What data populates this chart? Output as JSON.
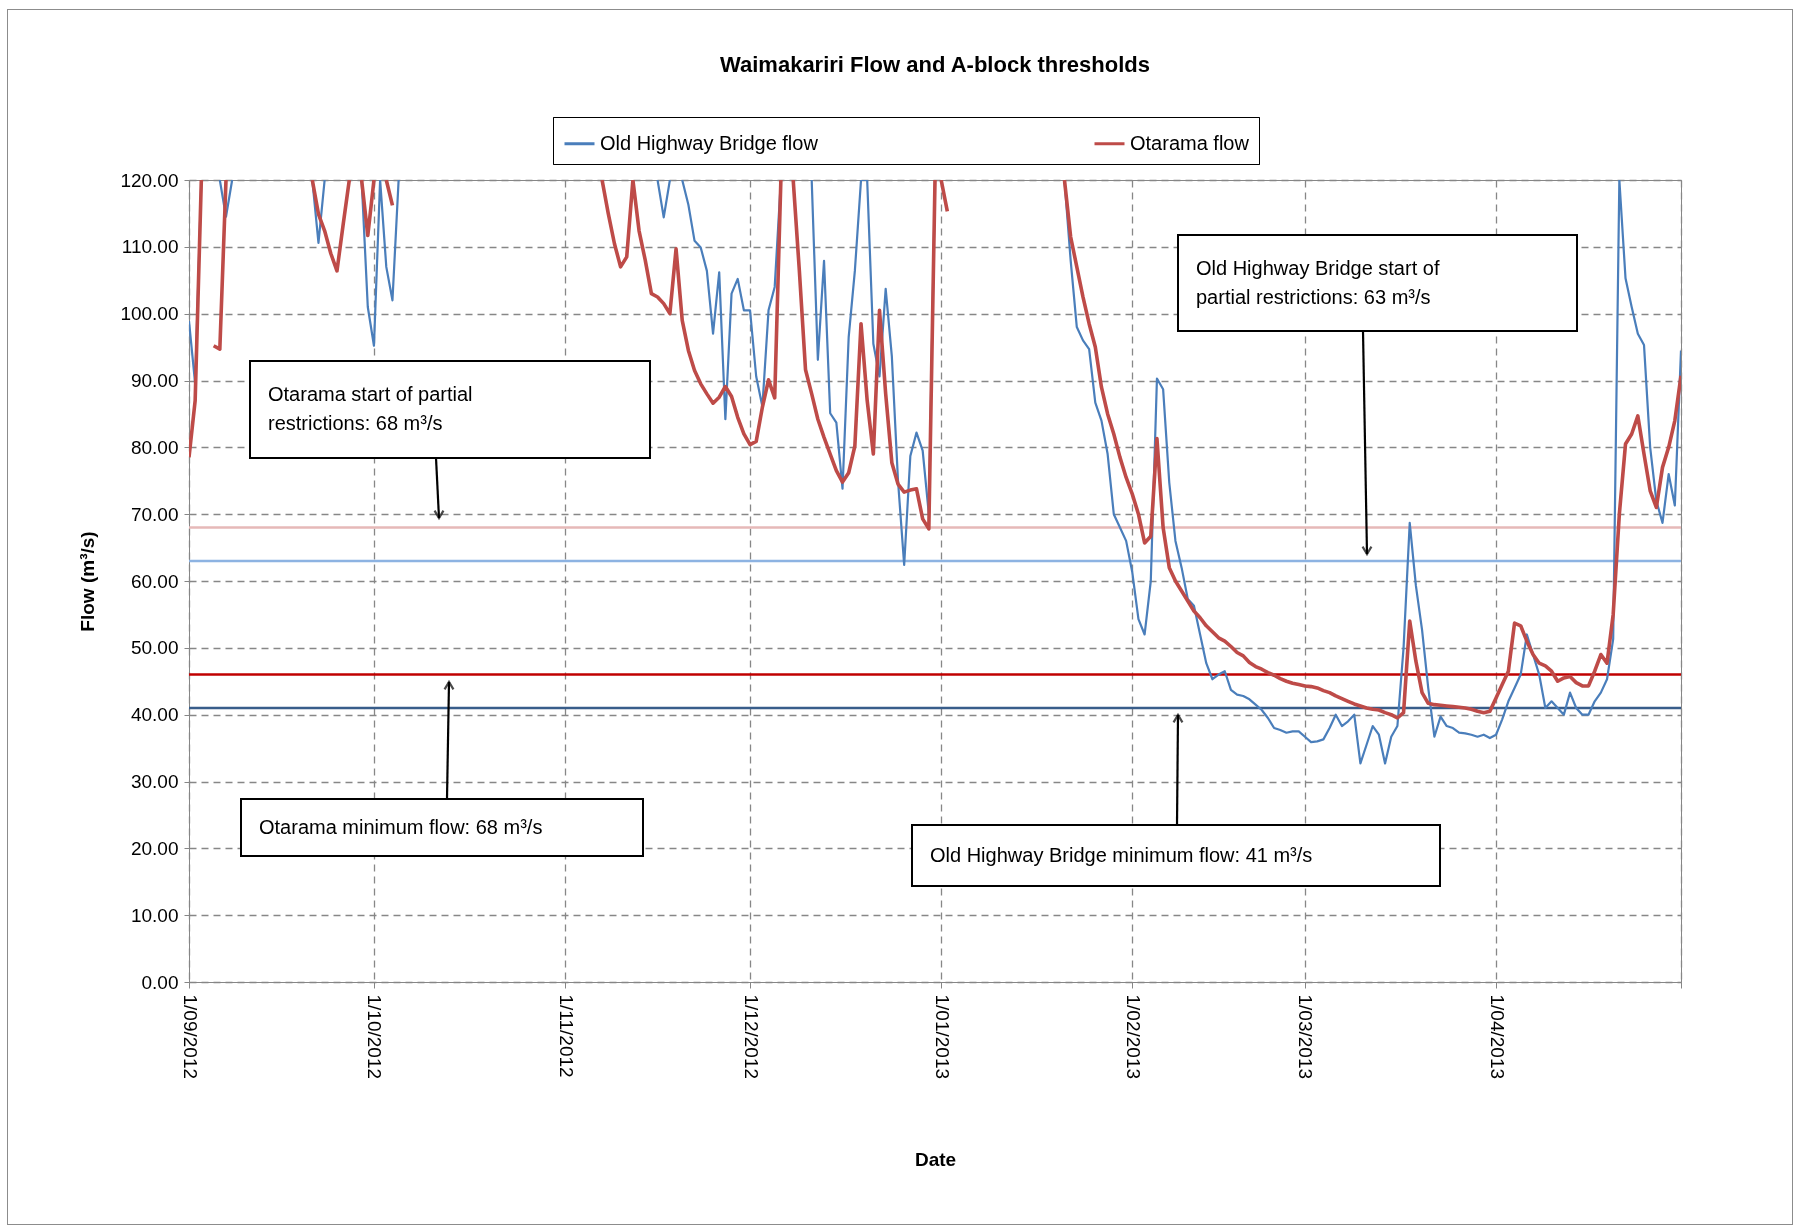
{
  "chart_data": {
    "type": "line",
    "title": "Waimakariri Flow and A-block thresholds",
    "xlabel": "Date",
    "ylabel": "Flow (m³/s)",
    "xlim": [
      "2012-09-01",
      "2013-05-01"
    ],
    "xticks": [
      {
        "value": "2012-09-01",
        "label": "1/09/2012"
      },
      {
        "value": "2012-10-01",
        "label": "1/10/2012"
      },
      {
        "value": "2012-11-01",
        "label": "1/11/2012"
      },
      {
        "value": "2012-12-01",
        "label": "1/12/2012"
      },
      {
        "value": "2013-01-01",
        "label": "1/01/2013"
      },
      {
        "value": "2013-02-01",
        "label": "1/02/2013"
      },
      {
        "value": "2013-03-01",
        "label": "1/03/2013"
      },
      {
        "value": "2013-04-01",
        "label": "1/04/2013"
      },
      {
        "value": "2013-05-01",
        "label": null
      }
    ],
    "ylim": [
      0,
      120
    ],
    "yticks": [
      {
        "value": 0,
        "label": "0.00"
      },
      {
        "value": 10,
        "label": "10.00"
      },
      {
        "value": 20,
        "label": "20.00"
      },
      {
        "value": 30,
        "label": "30.00"
      },
      {
        "value": 40,
        "label": "40.00"
      },
      {
        "value": 50,
        "label": "50.00"
      },
      {
        "value": 60,
        "label": "60.00"
      },
      {
        "value": 70,
        "label": "70.00"
      },
      {
        "value": 80,
        "label": "80.00"
      },
      {
        "value": 90,
        "label": "90.00"
      },
      {
        "value": 100,
        "label": "100.00"
      },
      {
        "value": 110,
        "label": "110.00"
      },
      {
        "value": 120,
        "label": "120.00"
      }
    ],
    "grid": true,
    "legend": "top",
    "series": [
      {
        "name": "Old Highway Bridge flow",
        "color": "#4a7ebb",
        "x": [
          "2012-09-01",
          "2012-09-02",
          "2012-09-03",
          "2012-09-04",
          "2012-09-06",
          "2012-09-07",
          "2012-09-08",
          "2012-09-09",
          "2012-09-21",
          "2012-09-22",
          "2012-09-23",
          "2012-09-24",
          "2012-09-29",
          "2012-09-30",
          "2012-10-01",
          "2012-10-02",
          "2012-10-03",
          "2012-10-04",
          "2012-10-05",
          "2012-10-06",
          "2012-11-16",
          "2012-11-17",
          "2012-11-18",
          "2012-11-19",
          "2012-11-20",
          "2012-11-21",
          "2012-11-22",
          "2012-11-23",
          "2012-11-24",
          "2012-11-25",
          "2012-11-26",
          "2012-11-27",
          "2012-11-28",
          "2012-11-29",
          "2012-11-30",
          "2012-12-01",
          "2012-12-02",
          "2012-12-03",
          "2012-12-04",
          "2012-12-05",
          "2012-12-06",
          "2012-12-07",
          "2012-12-11",
          "2012-12-12",
          "2012-12-13",
          "2012-12-14",
          "2012-12-15",
          "2012-12-16",
          "2012-12-17",
          "2012-12-18",
          "2012-12-19",
          "2012-12-20",
          "2012-12-21",
          "2012-12-22",
          "2012-12-23",
          "2012-12-24",
          "2012-12-25",
          "2012-12-26",
          "2012-12-27",
          "2012-12-28",
          "2012-12-29",
          "2012-12-30",
          "2012-12-31",
          "2013-01-01",
          "2013-01-20",
          "2013-01-21",
          "2013-01-22",
          "2013-01-23",
          "2013-01-24",
          "2013-01-25",
          "2013-01-26",
          "2013-01-27",
          "2013-01-28",
          "2013-01-29",
          "2013-01-30",
          "2013-01-31",
          "2013-02-01",
          "2013-02-02",
          "2013-02-03",
          "2013-02-04",
          "2013-02-05",
          "2013-02-06",
          "2013-02-07",
          "2013-02-08",
          "2013-02-09",
          "2013-02-10",
          "2013-02-11",
          "2013-02-12",
          "2013-02-13",
          "2013-02-14",
          "2013-02-15",
          "2013-02-16",
          "2013-02-17",
          "2013-02-18",
          "2013-02-19",
          "2013-02-20",
          "2013-02-21",
          "2013-02-22",
          "2013-02-23",
          "2013-02-24",
          "2013-02-25",
          "2013-02-26",
          "2013-02-27",
          "2013-02-28",
          "2013-03-01",
          "2013-03-02",
          "2013-03-03",
          "2013-03-04",
          "2013-03-05",
          "2013-03-06",
          "2013-03-07",
          "2013-03-08",
          "2013-03-09",
          "2013-03-10",
          "2013-03-11",
          "2013-03-12",
          "2013-03-13",
          "2013-03-14",
          "2013-03-15",
          "2013-03-16",
          "2013-03-17",
          "2013-03-18",
          "2013-03-19",
          "2013-03-20",
          "2013-03-21",
          "2013-03-22",
          "2013-03-23",
          "2013-03-24",
          "2013-03-25",
          "2013-03-26",
          "2013-03-27",
          "2013-03-28",
          "2013-03-29",
          "2013-03-30",
          "2013-03-31",
          "2013-04-01",
          "2013-04-02",
          "2013-04-03",
          "2013-04-04",
          "2013-04-05",
          "2013-04-06",
          "2013-04-07",
          "2013-04-08",
          "2013-04-09",
          "2013-04-10",
          "2013-04-11",
          "2013-04-12",
          "2013-04-13",
          "2013-04-14",
          "2013-04-15",
          "2013-04-16",
          "2013-04-17",
          "2013-04-18",
          "2013-04-19",
          "2013-04-20",
          "2013-04-21",
          "2013-04-22",
          "2013-04-23",
          "2013-04-24",
          "2013-04-25",
          "2013-04-26",
          "2013-04-27",
          "2013-04-28",
          "2013-04-29",
          "2013-04-30",
          "2013-05-01"
        ],
        "values": [
          98.9,
          89.5,
          120,
          null,
          120,
          114.5,
          120,
          null,
          120,
          110.6,
          120,
          null,
          120,
          101,
          95.2,
          120,
          107,
          102,
          120,
          null,
          120,
          114.4,
          120,
          null,
          120,
          116.3,
          110.9,
          109.9,
          106.4,
          97,
          106.2,
          84.2,
          103,
          105.2,
          100.5,
          100.5,
          90.6,
          86.1,
          100.5,
          104,
          120,
          null,
          120,
          93.1,
          107.9,
          85.1,
          83.7,
          73.8,
          96.5,
          106.4,
          120,
          120,
          95.5,
          90.6,
          103.7,
          93.6,
          75,
          62.4,
          78.7,
          82.2,
          79.5,
          70,
          120,
          null,
          null,
          120,
          108,
          98,
          96,
          94.7,
          86.7,
          84,
          79,
          70,
          68,
          66,
          61.3,
          54.3,
          52,
          60,
          90.3,
          88.7,
          74.7,
          66,
          62,
          57.3,
          56.3,
          52,
          47.7,
          45.3,
          46,
          46.5,
          43.7,
          43,
          42.8,
          42.3,
          41.5,
          40.7,
          39.5,
          38,
          37.7,
          37.3,
          37.5,
          37.5,
          36.7,
          35.9,
          36,
          36.3,
          38,
          40,
          38.3,
          39,
          40,
          32.7,
          35.5,
          38.3,
          37,
          32.7,
          36.7,
          38.3,
          50,
          68.7,
          59.3,
          52.7,
          44,
          36.7,
          39.7,
          38.3,
          38,
          37.3,
          37.2,
          37,
          36.7,
          37,
          36.5,
          37,
          39.3,
          42,
          44,
          46,
          52,
          49,
          46,
          41,
          42,
          41,
          40,
          43.3,
          41,
          40,
          40,
          42,
          43.3,
          45.3,
          51.3,
          120,
          105.3,
          101,
          97,
          95.3,
          80,
          72,
          68.7,
          76,
          71.3,
          94.5
        ]
      },
      {
        "name": "Otarama flow",
        "color": "#be4b48",
        "x": [
          "2012-09-01",
          "2012-09-02",
          "2012-09-03",
          "2012-09-04",
          "2012-09-05",
          "2012-09-06",
          "2012-09-07",
          "2012-09-08",
          "2012-09-21",
          "2012-09-22",
          "2012-09-23",
          "2012-09-24",
          "2012-09-25",
          "2012-09-26",
          "2012-09-27",
          "2012-09-28",
          "2012-09-29",
          "2012-09-30",
          "2012-10-01",
          "2012-10-02",
          "2012-10-03",
          "2012-10-04",
          "2012-10-05",
          "2012-11-07",
          "2012-11-08",
          "2012-11-09",
          "2012-11-10",
          "2012-11-11",
          "2012-11-12",
          "2012-11-13",
          "2012-11-14",
          "2012-11-15",
          "2012-11-16",
          "2012-11-17",
          "2012-11-18",
          "2012-11-19",
          "2012-11-20",
          "2012-11-21",
          "2012-11-22",
          "2012-11-23",
          "2012-11-24",
          "2012-11-25",
          "2012-11-26",
          "2012-11-27",
          "2012-11-28",
          "2012-11-29",
          "2012-11-30",
          "2012-12-01",
          "2012-12-02",
          "2012-12-03",
          "2012-12-04",
          "2012-12-05",
          "2012-12-06",
          "2012-12-07",
          "2012-12-08",
          "2012-12-09",
          "2012-12-10",
          "2012-12-11",
          "2012-12-12",
          "2012-12-13",
          "2012-12-14",
          "2012-12-15",
          "2012-12-16",
          "2012-12-17",
          "2012-12-18",
          "2012-12-19",
          "2012-12-20",
          "2012-12-21",
          "2012-12-22",
          "2012-12-23",
          "2012-12-24",
          "2012-12-25",
          "2012-12-26",
          "2012-12-27",
          "2012-12-28",
          "2012-12-29",
          "2012-12-30",
          "2012-12-31",
          "2012-12-31T12:00",
          "2013-01-01",
          "2013-01-02",
          "2013-01-03",
          "2013-01-20",
          "2013-01-21",
          "2013-01-22",
          "2013-01-23",
          "2013-01-24",
          "2013-01-25",
          "2013-01-26",
          "2013-01-27",
          "2013-01-28",
          "2013-01-29",
          "2013-01-30",
          "2013-01-31",
          "2013-02-01",
          "2013-02-02",
          "2013-02-03",
          "2013-02-04",
          "2013-02-05",
          "2013-02-06",
          "2013-02-07",
          "2013-02-08",
          "2013-02-09",
          "2013-02-10",
          "2013-02-11",
          "2013-02-12",
          "2013-02-13",
          "2013-02-14",
          "2013-02-15",
          "2013-02-16",
          "2013-02-17",
          "2013-02-18",
          "2013-02-19",
          "2013-02-20",
          "2013-02-21",
          "2013-02-22",
          "2013-02-23",
          "2013-02-24",
          "2013-02-25",
          "2013-02-26",
          "2013-02-27",
          "2013-02-28",
          "2013-03-01",
          "2013-03-02",
          "2013-03-03",
          "2013-03-04",
          "2013-03-05",
          "2013-03-06",
          "2013-03-07",
          "2013-03-08",
          "2013-03-09",
          "2013-03-10",
          "2013-03-11",
          "2013-03-12",
          "2013-03-13",
          "2013-03-14",
          "2013-03-15",
          "2013-03-16",
          "2013-03-17",
          "2013-03-18",
          "2013-03-19",
          "2013-03-20",
          "2013-03-21",
          "2013-03-22",
          "2013-03-23",
          "2013-03-24",
          "2013-03-25",
          "2013-03-26",
          "2013-03-27",
          "2013-03-28",
          "2013-03-29",
          "2013-03-30",
          "2013-03-31",
          "2013-04-01",
          "2013-04-02",
          "2013-04-03",
          "2013-04-04",
          "2013-04-05",
          "2013-04-06",
          "2013-04-07",
          "2013-04-08",
          "2013-04-09",
          "2013-04-10",
          "2013-04-11",
          "2013-04-12",
          "2013-04-13",
          "2013-04-14",
          "2013-04-15",
          "2013-04-16",
          "2013-04-17",
          "2013-04-18",
          "2013-04-19",
          "2013-04-20",
          "2013-04-21",
          "2013-04-22",
          "2013-04-23",
          "2013-04-24",
          "2013-04-25",
          "2013-04-26",
          "2013-04-27",
          "2013-04-28",
          "2013-04-29",
          "2013-04-30",
          "2013-05-01"
        ],
        "values": [
          78.5,
          87,
          120,
          null,
          95.2,
          94.7,
          120,
          null,
          120,
          114.9,
          112.4,
          109,
          106.4,
          113.3,
          120,
          null,
          120,
          111.7,
          120,
          null,
          120,
          116.2,
          null,
          120,
          115,
          110.5,
          107,
          108.5,
          120,
          112.4,
          108,
          103,
          102.5,
          101.5,
          100,
          109.7,
          99,
          94.5,
          91.5,
          89.5,
          88,
          86.6,
          87.5,
          89.1,
          87.6,
          84.5,
          82,
          80.4,
          80.9,
          86,
          90.1,
          87.4,
          120,
          null,
          120,
          106.4,
          91.6,
          88,
          84.2,
          81.5,
          79,
          76.5,
          74.8,
          76.2,
          80.2,
          98.5,
          87,
          79,
          100.5,
          88,
          77.7,
          74.5,
          73.3,
          73.6,
          73.8,
          69.3,
          67.8,
          120,
          null,
          120,
          115.3,
          null,
          null,
          120,
          111.5,
          107,
          102.5,
          98.5,
          95,
          89,
          85,
          82,
          78.5,
          75.5,
          73,
          70,
          65.7,
          66.7,
          81.3,
          68,
          62,
          60,
          58.5,
          57,
          55.5,
          54.5,
          53.3,
          52.4,
          51.5,
          51,
          50.2,
          49.3,
          48.8,
          47.8,
          47.2,
          46.8,
          46.3,
          45.9,
          45.4,
          45,
          44.7,
          44.5,
          44.3,
          44.2,
          44,
          43.6,
          43.3,
          42.8,
          42.4,
          42,
          41.6,
          41.3,
          41,
          40.8,
          40.7,
          40.3,
          40,
          39.5,
          40.3,
          54,
          48,
          43.3,
          41.7,
          41.5,
          41.4,
          41.3,
          41.2,
          41.1,
          41,
          40.8,
          40.5,
          40.3,
          40.5,
          42.5,
          44.5,
          46.5,
          53.7,
          53.3,
          51,
          49,
          47.7,
          47.3,
          46.5,
          45,
          45.5,
          45.7,
          44.8,
          44.3,
          44.3,
          46.5,
          49,
          47.7,
          55,
          70,
          80.5,
          82,
          84.7,
          79,
          73.5,
          71,
          77,
          80,
          84,
          90.7
        ]
      }
    ],
    "ref_lines": [
      {
        "axis": "y",
        "value": 68,
        "color": "#e6b9b8"
      },
      {
        "axis": "y",
        "value": 63,
        "color": "#8db3e2"
      },
      {
        "axis": "y",
        "value": 46,
        "color": "#c00000"
      },
      {
        "axis": "y",
        "value": 41,
        "color": "#385d8a"
      }
    ],
    "annotations": [
      "Otarama start of partial restrictions: 68 m³/s",
      "Old Highway Bridge start of partial restrictions: 63 m³/s",
      "Otarama minimum flow: 68 m³/s",
      "Old Highway Bridge minimum flow: 41 m³/s"
    ]
  }
}
